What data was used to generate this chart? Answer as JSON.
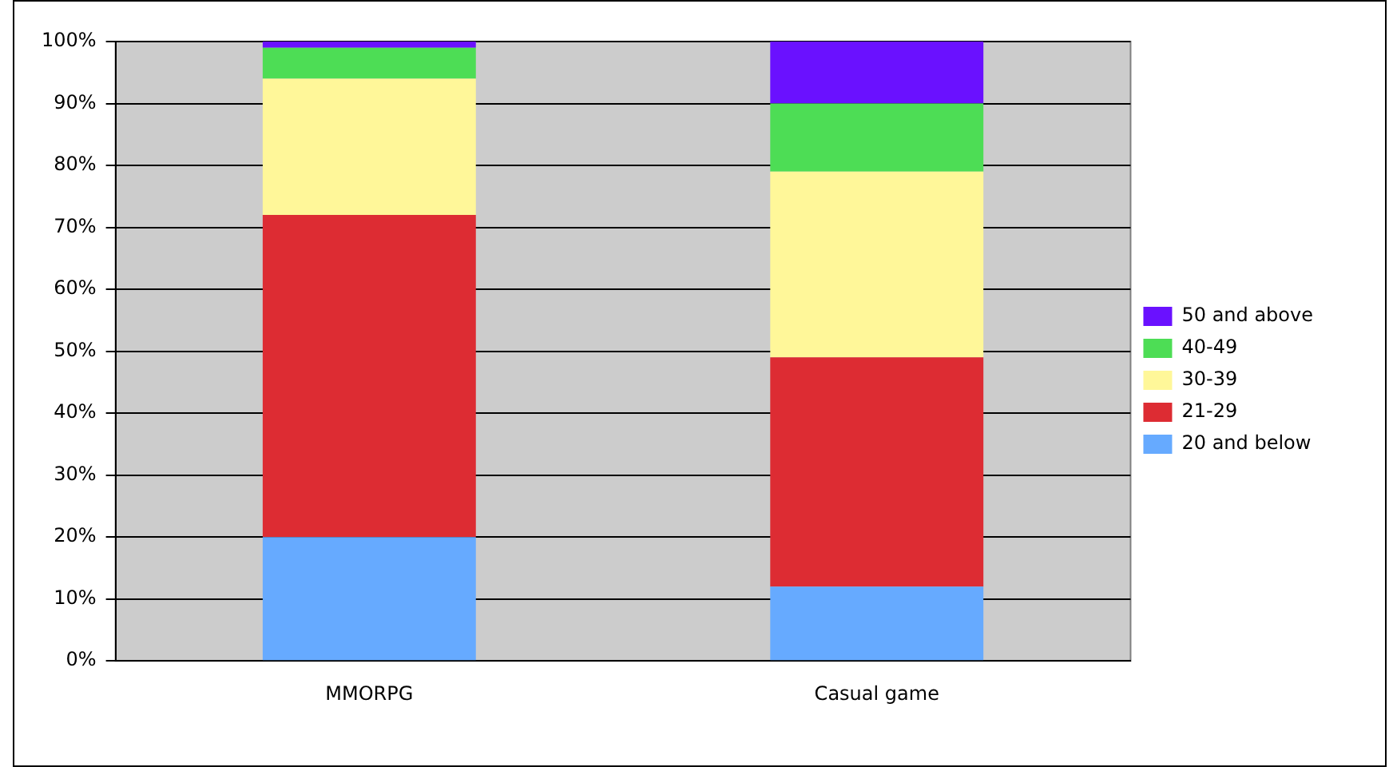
{
  "chart_data": {
    "type": "bar",
    "stacked": true,
    "categories": [
      "MMORPG",
      "Casual game"
    ],
    "series": [
      {
        "name": "20 and below",
        "color": "#66aaff",
        "values": [
          20,
          12
        ]
      },
      {
        "name": "21-29",
        "color": "#dd2c33",
        "values": [
          52,
          37
        ]
      },
      {
        "name": "30-39",
        "color": "#fff799",
        "values": [
          22,
          30
        ]
      },
      {
        "name": "40-49",
        "color": "#4ddd55",
        "values": [
          5,
          11
        ]
      },
      {
        "name": "50 and above",
        "color": "#6a11ff",
        "values": [
          1,
          10
        ]
      }
    ],
    "ylim": [
      0,
      100
    ],
    "yticks": [
      {
        "value": 0,
        "label": "0%"
      },
      {
        "value": 10,
        "label": "10%"
      },
      {
        "value": 20,
        "label": "20%"
      },
      {
        "value": 30,
        "label": "30%"
      },
      {
        "value": 40,
        "label": "40%"
      },
      {
        "value": 50,
        "label": "50%"
      },
      {
        "value": 60,
        "label": "60%"
      },
      {
        "value": 70,
        "label": "70%"
      },
      {
        "value": 80,
        "label": "80%"
      },
      {
        "value": 90,
        "label": "90%"
      },
      {
        "value": 100,
        "label": "100%"
      }
    ],
    "grid": "y",
    "legend": "right"
  }
}
